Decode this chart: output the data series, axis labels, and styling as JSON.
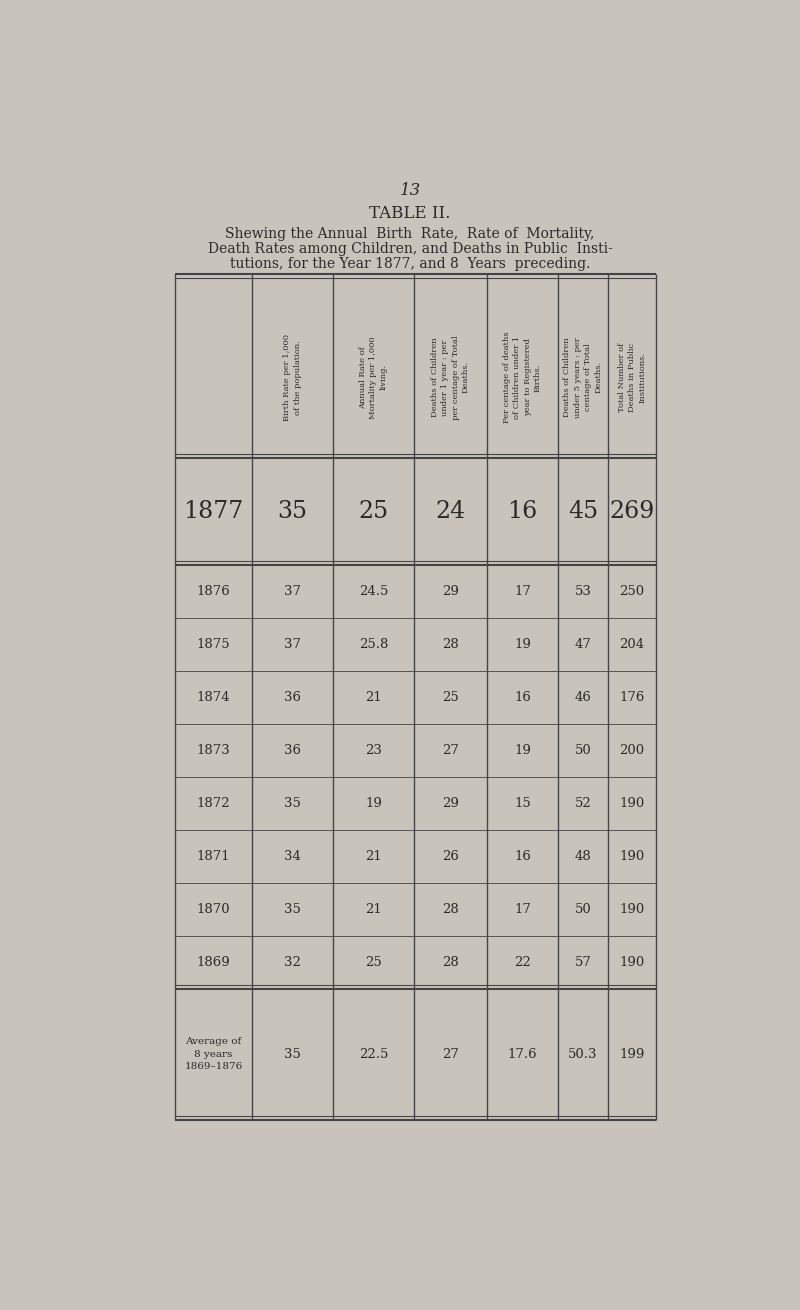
{
  "page_number": "13",
  "title": "TABLE II.",
  "subtitle_line1": "Shewing the Annual  Birth  Rate,  Rate of  Mortality,",
  "subtitle_line2": "Death Rates among Children, and Deaths in Public  Insti-",
  "subtitle_line3": "tutions, for the Year 1877, and 8  Years  preceding.",
  "col_headers": [
    "Birth Rate per 1,000\nof the population.",
    "Annual Rate of\nMortality per 1,000\nliving.",
    "Deaths of Children\nunder 1 year : per\nper centage of Total\nDeaths.",
    "Per centage of deaths\nof Children under 1\nyear to Registered\nBirths.",
    "Deaths of Children\nunder 5 years : per\ncentage of Total\nDeaths.",
    "Total Number of\nDeaths in Public\nInstitutions."
  ],
  "row_1877": [
    "1877",
    "35",
    "25",
    "24",
    "16",
    "45",
    "269"
  ],
  "rows_main": [
    [
      "1876",
      "37",
      "24.5",
      "29",
      "17",
      "53",
      "250"
    ],
    [
      "1875",
      "37",
      "25.8",
      "28",
      "19",
      "47",
      "204"
    ],
    [
      "1874",
      "36",
      "21",
      "25",
      "16",
      "46",
      "176"
    ],
    [
      "1873",
      "36",
      "23",
      "27",
      "19",
      "50",
      "200"
    ],
    [
      "1872",
      "35",
      "19",
      "29",
      "15",
      "52",
      "190"
    ],
    [
      "1871",
      "34",
      "21",
      "26",
      "16",
      "48",
      "190"
    ],
    [
      "1870",
      "35",
      "21",
      "28",
      "17",
      "50",
      "190"
    ],
    [
      "1869",
      "32",
      "25",
      "28",
      "22",
      "57",
      "190"
    ]
  ],
  "row_avg_label": "Average of\n8 years\n1869–1876",
  "row_avg": [
    "35",
    "22.5",
    "27",
    "17.6",
    "50.3",
    "199"
  ],
  "bg_color": "#c8c4bc",
  "text_color": "#2a2a2a",
  "line_color": "#444444",
  "font_size_title": 12,
  "font_size_subtitle": 10,
  "font_size_header": 6.0,
  "font_size_1877": 17,
  "font_size_data": 9.5,
  "font_size_page": 12,
  "font_size_avg_label": 7.5
}
